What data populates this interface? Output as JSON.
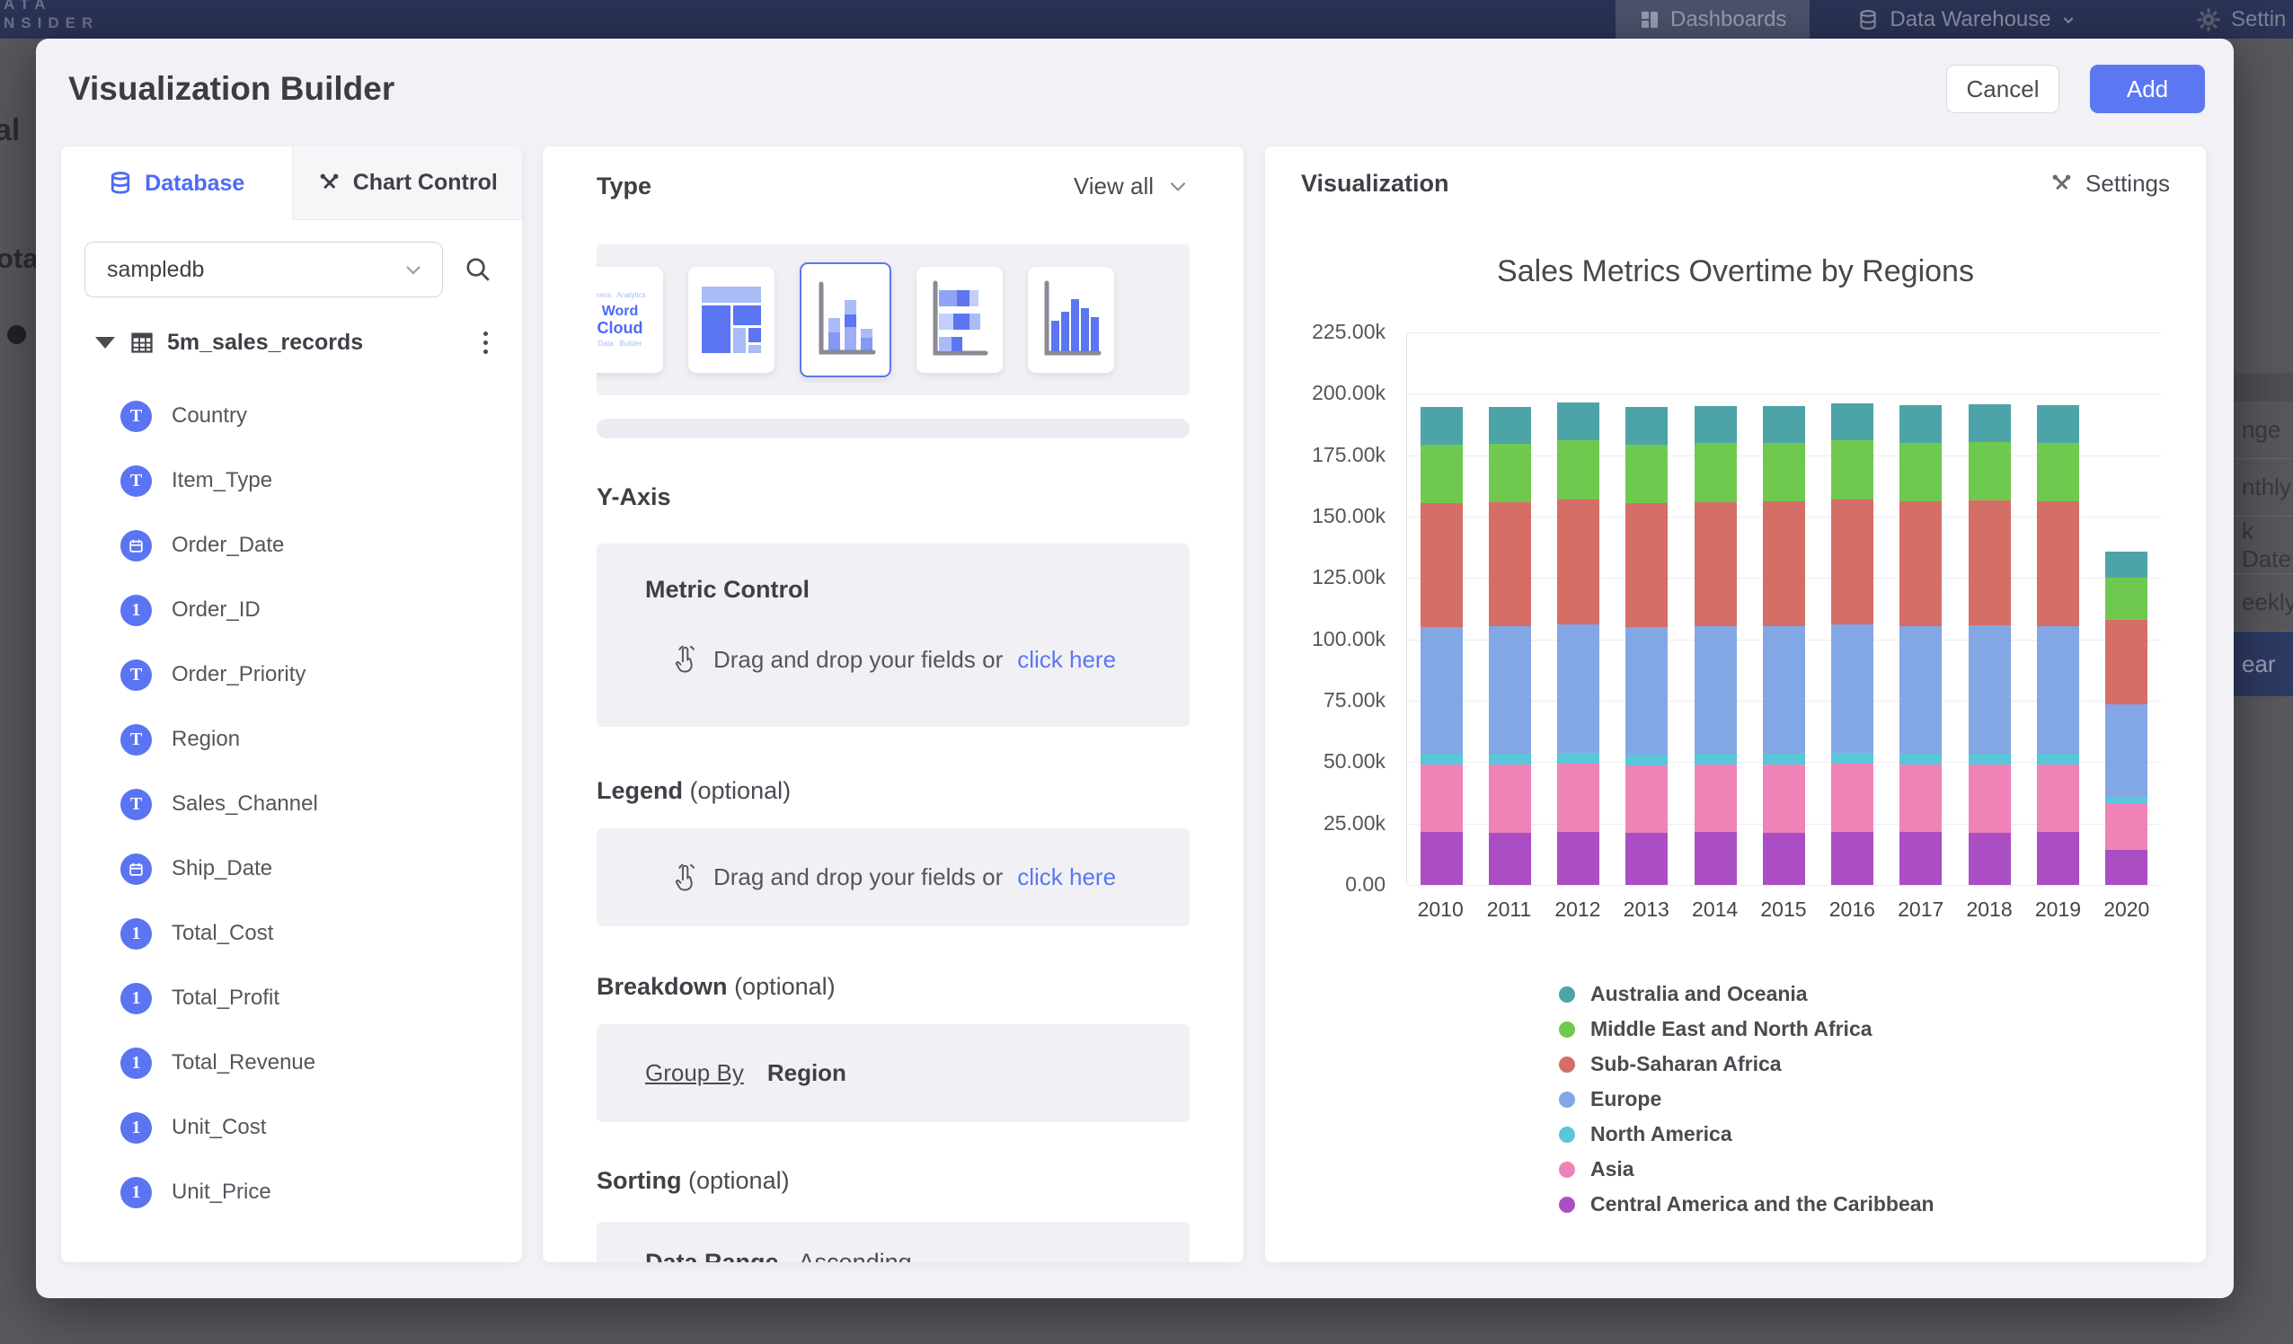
{
  "topbar": {
    "logo_line1": "ATA",
    "logo_line2": "NSIDER",
    "nav": [
      {
        "label": "Dashboards"
      },
      {
        "label": "Data Warehouse"
      },
      {
        "label": "Settin"
      }
    ]
  },
  "background": {
    "left_fragments": {
      "frag1": "al",
      "frag2": "ota"
    },
    "right_rows": [
      {
        "label": "nge",
        "highlight": false
      },
      {
        "label": "nthly",
        "highlight": false
      },
      {
        "label": "k Date",
        "highlight": false
      },
      {
        "label": "eekly",
        "highlight": false
      },
      {
        "label": "ear",
        "highlight": true
      }
    ]
  },
  "modal": {
    "title": "Visualization Builder",
    "cancel_label": "Cancel",
    "add_label": "Add"
  },
  "left_panel": {
    "tabs": [
      {
        "label": "Database",
        "active": true
      },
      {
        "label": "Chart Control",
        "active": false
      }
    ],
    "database_select": {
      "value": "sampledb"
    },
    "table": {
      "name": "5m_sales_records",
      "fields": [
        {
          "name": "Country",
          "type": "text"
        },
        {
          "name": "Item_Type",
          "type": "text"
        },
        {
          "name": "Order_Date",
          "type": "date"
        },
        {
          "name": "Order_ID",
          "type": "number"
        },
        {
          "name": "Order_Priority",
          "type": "text"
        },
        {
          "name": "Region",
          "type": "text"
        },
        {
          "name": "Sales_Channel",
          "type": "text"
        },
        {
          "name": "Ship_Date",
          "type": "date"
        },
        {
          "name": "Total_Cost",
          "type": "number"
        },
        {
          "name": "Total_Profit",
          "type": "number"
        },
        {
          "name": "Total_Revenue",
          "type": "number"
        },
        {
          "name": "Unit_Cost",
          "type": "number"
        },
        {
          "name": "Unit_Price",
          "type": "number"
        }
      ]
    }
  },
  "builder": {
    "type_label": "Type",
    "view_all_label": "View all",
    "word_cloud_thumb": {
      "line1": "Word",
      "line2": "Cloud"
    },
    "chart_types": [
      "Word Cloud",
      "Treemap",
      "Stacked Column",
      "Stacked Bar",
      "Column"
    ],
    "selected_type_index": 2,
    "y_axis": {
      "title": "Y-Axis",
      "panel_title": "Metric Control",
      "drop_text": "Drag and drop your fields or",
      "drop_link": "click here"
    },
    "legend": {
      "title": "Legend",
      "optional": "(optional)",
      "drop_text": "Drag and drop your fields or",
      "drop_link": "click here"
    },
    "breakdown": {
      "title": "Breakdown",
      "optional": "(optional)",
      "group_by_label": "Group By",
      "group_by_value": "Region"
    },
    "sorting": {
      "title": "Sorting",
      "optional": "(optional)",
      "row_label": "Data Range",
      "row_value": "Ascending"
    }
  },
  "visualization": {
    "header": "Visualization",
    "settings_label": "Settings"
  },
  "chart_data": {
    "type": "bar",
    "stacked": true,
    "title": "Sales Metrics Overtime by Regions",
    "xlabel": "",
    "ylabel": "",
    "grid": true,
    "legend_position": "bottom-left",
    "y_max": 225000,
    "y_ticks": [
      "225.00k",
      "200.00k",
      "175.00k",
      "150.00k",
      "125.00k",
      "100.00k",
      "75.00k",
      "50.00k",
      "25.00k",
      "0.00"
    ],
    "categories": [
      "2010",
      "2011",
      "2012",
      "2013",
      "2014",
      "2015",
      "2016",
      "2017",
      "2018",
      "2019",
      "2020"
    ],
    "series": [
      {
        "name": "Central America and the Caribbean",
        "color": "#ab4ec4",
        "values": [
          21500,
          21300,
          21600,
          21400,
          21500,
          21400,
          21600,
          21500,
          21400,
          21700,
          14300
        ]
      },
      {
        "name": "Asia",
        "color": "#ef83b8",
        "values": [
          27500,
          27600,
          27800,
          27400,
          27500,
          27600,
          27900,
          27500,
          27700,
          27200,
          18900
        ]
      },
      {
        "name": "North America",
        "color": "#5bc6da",
        "values": [
          4300,
          4400,
          4300,
          4400,
          4300,
          4400,
          4400,
          4300,
          4400,
          4400,
          2500
        ]
      },
      {
        "name": "Europe",
        "color": "#83a7e5",
        "values": [
          51800,
          52000,
          52400,
          51900,
          52100,
          52000,
          52300,
          52100,
          52200,
          52200,
          37700
        ]
      },
      {
        "name": "Sub-Saharan Africa",
        "color": "#d56e67",
        "values": [
          50400,
          50600,
          51000,
          50500,
          50600,
          50700,
          50900,
          50800,
          50900,
          50800,
          34500
        ]
      },
      {
        "name": "Middle East and North Africa",
        "color": "#70c94f",
        "values": [
          23800,
          23700,
          24000,
          23800,
          23900,
          23800,
          23900,
          23800,
          23900,
          23800,
          17300
        ]
      },
      {
        "name": "Australia and Oceania",
        "color": "#4da4a8",
        "values": [
          15200,
          15200,
          15400,
          15200,
          15000,
          15100,
          15000,
          15200,
          15100,
          15300,
          10600
        ]
      }
    ],
    "legend_order": [
      "Australia and Oceania",
      "Middle East and North Africa",
      "Sub-Saharan Africa",
      "Europe",
      "North America",
      "Asia",
      "Central America and the Caribbean"
    ]
  }
}
